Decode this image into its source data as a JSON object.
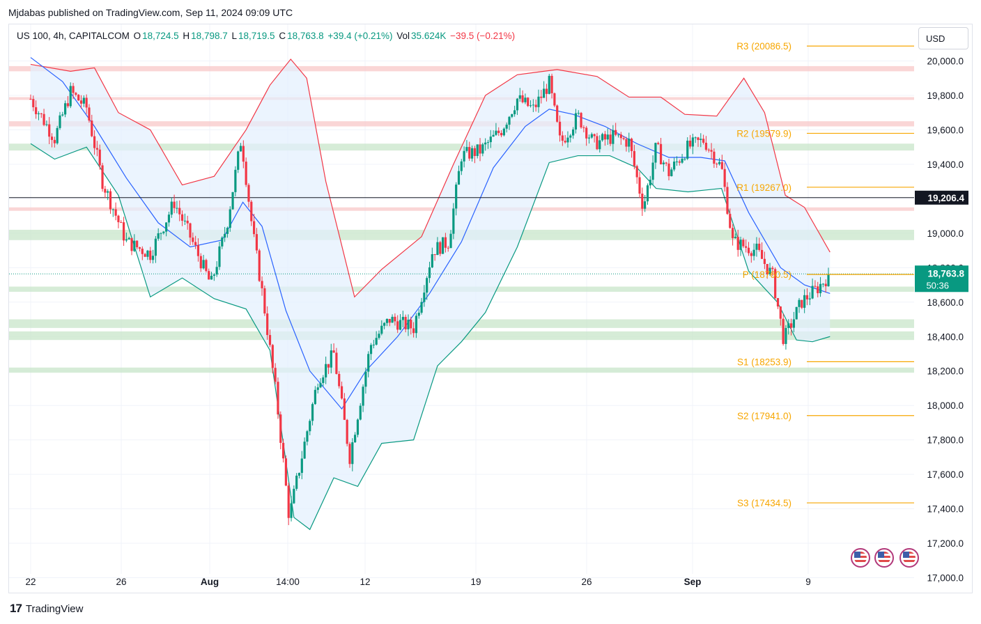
{
  "header": {
    "publisher": "Mjdabas published on TradingView.com, Sep 11, 2024 09:09 UTC"
  },
  "legend": {
    "symbol": "US 100, 4h, CAPITALCOM",
    "open_label": "O",
    "open": "18,724.5",
    "high_label": "H",
    "high": "18,798.7",
    "low_label": "L",
    "low": "18,719.5",
    "close_label": "C",
    "close": "18,763.8",
    "change": "+39.4 (+0.21%)",
    "vol_label": "Vol",
    "vol": "35.624K",
    "vol_change": "−39.5 (−0.21%)"
  },
  "currency_button": "USD",
  "footer": {
    "logo": "17",
    "brand": "TradingView"
  },
  "colors": {
    "up": "#089981",
    "down": "#f23645",
    "basis": "#2962ff",
    "upper_band": "#f23645",
    "lower_band": "#089981",
    "band_fill": "#e3effd",
    "pivot": "#f7a600",
    "support_zone": "#c8e6c9",
    "resistance_zone": "#f8c8c8"
  },
  "icons": [
    "us-flag-icon",
    "us-flag-icon",
    "us-flag-icon",
    "tradingview-logo-icon"
  ],
  "chart_data": {
    "type": "candlestick",
    "symbol": "US 100",
    "interval": "4h",
    "x_ticks": [
      "22",
      "26",
      "Aug",
      "14:00",
      "12",
      "19",
      "26",
      "Sep",
      "9"
    ],
    "y_ticks": [
      "20,000.0",
      "19,800.0",
      "19,600.0",
      "19,400.0",
      "19,200.0",
      "19,000.0",
      "18,800.0",
      "18,600.0",
      "18,400.0",
      "18,200.0",
      "18,000.0",
      "17,800.0",
      "17,600.0",
      "17,400.0",
      "17,200.0",
      "17,000.0"
    ],
    "ylim": [
      16990,
      20180
    ],
    "horizontal_line": {
      "value": 19206.4,
      "label": "19,206.4"
    },
    "last_price": {
      "value": 18763.8,
      "label": "18,763.8",
      "countdown": "50:36"
    },
    "pivot_levels": [
      {
        "name": "R3",
        "value": 20086.5,
        "label": "R3 (20086.5)"
      },
      {
        "name": "R2",
        "value": 19579.9,
        "label": "R2 (19579.9)"
      },
      {
        "name": "R1",
        "value": 19267.0,
        "label": "R1 (19267.0)"
      },
      {
        "name": "P",
        "value": 18760.5,
        "label": "P (18760.5)"
      },
      {
        "name": "S1",
        "value": 18253.9,
        "label": "S1 (18253.9)"
      },
      {
        "name": "S2",
        "value": 17941.0,
        "label": "S2 (17941.0)"
      },
      {
        "name": "S3",
        "value": 17434.5,
        "label": "S3 (17434.5)"
      }
    ],
    "zones": [
      {
        "type": "resistance",
        "from": 19940,
        "to": 19970
      },
      {
        "type": "resistance",
        "from": 19780,
        "to": 19790
      },
      {
        "type": "resistance",
        "from": 19620,
        "to": 19650
      },
      {
        "type": "support",
        "from": 19480,
        "to": 19520
      },
      {
        "type": "resistance",
        "from": 19130,
        "to": 19150
      },
      {
        "type": "support",
        "from": 18960,
        "to": 19020
      },
      {
        "type": "support",
        "from": 18660,
        "to": 18690
      },
      {
        "type": "support",
        "from": 18450,
        "to": 18500
      },
      {
        "type": "support",
        "from": 18380,
        "to": 18430
      },
      {
        "type": "support",
        "from": 18190,
        "to": 18220
      }
    ],
    "price_path": [
      {
        "day": 0,
        "price": 19780
      },
      {
        "day": 1.5,
        "price": 19550
      },
      {
        "day": 2.5,
        "price": 19820
      },
      {
        "day": 3.5,
        "price": 19730
      },
      {
        "day": 4.5,
        "price": 19300
      },
      {
        "day": 6,
        "price": 18950
      },
      {
        "day": 7.5,
        "price": 18880
      },
      {
        "day": 9,
        "price": 19180
      },
      {
        "day": 10,
        "price": 18980
      },
      {
        "day": 11.3,
        "price": 18700
      },
      {
        "day": 12.3,
        "price": 19050
      },
      {
        "day": 13.2,
        "price": 19550
      },
      {
        "day": 13.9,
        "price": 19020
      },
      {
        "day": 14.6,
        "price": 18600
      },
      {
        "day": 15.4,
        "price": 18050
      },
      {
        "day": 16.2,
        "price": 17350
      },
      {
        "day": 17.1,
        "price": 17750
      },
      {
        "day": 18,
        "price": 18150
      },
      {
        "day": 19,
        "price": 18300
      },
      {
        "day": 20,
        "price": 17700
      },
      {
        "day": 21.3,
        "price": 18350
      },
      {
        "day": 22.5,
        "price": 18500
      },
      {
        "day": 24,
        "price": 18450
      },
      {
        "day": 25.2,
        "price": 18900
      },
      {
        "day": 26.2,
        "price": 18950
      },
      {
        "day": 27,
        "price": 19450
      },
      {
        "day": 28.2,
        "price": 19480
      },
      {
        "day": 29.5,
        "price": 19600
      },
      {
        "day": 30.5,
        "price": 19780
      },
      {
        "day": 31.5,
        "price": 19720
      },
      {
        "day": 32.5,
        "price": 19870
      },
      {
        "day": 33.2,
        "price": 19520
      },
      {
        "day": 34.3,
        "price": 19680
      },
      {
        "day": 35.3,
        "price": 19520
      },
      {
        "day": 36.5,
        "price": 19560
      },
      {
        "day": 37.5,
        "price": 19530
      },
      {
        "day": 38.4,
        "price": 19150
      },
      {
        "day": 39.2,
        "price": 19500
      },
      {
        "day": 40,
        "price": 19350
      },
      {
        "day": 41.2,
        "price": 19500
      },
      {
        "day": 42.2,
        "price": 19540
      },
      {
        "day": 43.3,
        "price": 19380
      },
      {
        "day": 44,
        "price": 18950
      },
      {
        "day": 45.5,
        "price": 18900
      },
      {
        "day": 46.5,
        "price": 18750
      },
      {
        "day": 47.2,
        "price": 18380
      },
      {
        "day": 48.3,
        "price": 18600
      },
      {
        "day": 49.3,
        "price": 18680
      },
      {
        "day": 50.1,
        "price": 18764
      }
    ],
    "bollinger": {
      "basis": [
        {
          "day": 0,
          "price": 20020
        },
        {
          "day": 2,
          "price": 19880
        },
        {
          "day": 4,
          "price": 19620
        },
        {
          "day": 6,
          "price": 19320
        },
        {
          "day": 8,
          "price": 19060
        },
        {
          "day": 10,
          "price": 18920
        },
        {
          "day": 12,
          "price": 18960
        },
        {
          "day": 13.3,
          "price": 19180
        },
        {
          "day": 14.5,
          "price": 19040
        },
        {
          "day": 16,
          "price": 18550
        },
        {
          "day": 17.5,
          "price": 18200
        },
        {
          "day": 19.5,
          "price": 17980
        },
        {
          "day": 21,
          "price": 18200
        },
        {
          "day": 23,
          "price": 18400
        },
        {
          "day": 25,
          "price": 18650
        },
        {
          "day": 27,
          "price": 18950
        },
        {
          "day": 29,
          "price": 19380
        },
        {
          "day": 31,
          "price": 19620
        },
        {
          "day": 32.5,
          "price": 19720
        },
        {
          "day": 34,
          "price": 19690
        },
        {
          "day": 36,
          "price": 19620
        },
        {
          "day": 38,
          "price": 19520
        },
        {
          "day": 40,
          "price": 19440
        },
        {
          "day": 42,
          "price": 19440
        },
        {
          "day": 43.5,
          "price": 19420
        },
        {
          "day": 45,
          "price": 19120
        },
        {
          "day": 47,
          "price": 18800
        },
        {
          "day": 48.5,
          "price": 18700
        },
        {
          "day": 50.1,
          "price": 18650
        }
      ],
      "upper": [
        {
          "day": 0,
          "price": 19980
        },
        {
          "day": 2.5,
          "price": 19940
        },
        {
          "day": 4,
          "price": 19960
        },
        {
          "day": 5.5,
          "price": 19700
        },
        {
          "day": 7.5,
          "price": 19600
        },
        {
          "day": 9.5,
          "price": 19280
        },
        {
          "day": 11.5,
          "price": 19330
        },
        {
          "day": 13.5,
          "price": 19600
        },
        {
          "day": 15,
          "price": 19860
        },
        {
          "day": 16.3,
          "price": 20010
        },
        {
          "day": 17.3,
          "price": 19900
        },
        {
          "day": 18.5,
          "price": 19300
        },
        {
          "day": 20.3,
          "price": 18630
        },
        {
          "day": 22,
          "price": 18790
        },
        {
          "day": 24.5,
          "price": 18980
        },
        {
          "day": 26.5,
          "price": 19400
        },
        {
          "day": 28.5,
          "price": 19800
        },
        {
          "day": 30.5,
          "price": 19920
        },
        {
          "day": 33,
          "price": 19950
        },
        {
          "day": 35.5,
          "price": 19910
        },
        {
          "day": 37.5,
          "price": 19790
        },
        {
          "day": 39.5,
          "price": 19790
        },
        {
          "day": 41,
          "price": 19690
        },
        {
          "day": 43,
          "price": 19680
        },
        {
          "day": 44.7,
          "price": 19900
        },
        {
          "day": 46,
          "price": 19700
        },
        {
          "day": 47.3,
          "price": 19220
        },
        {
          "day": 48.5,
          "price": 19150
        },
        {
          "day": 50.1,
          "price": 18890
        }
      ],
      "lower": [
        {
          "day": 0,
          "price": 19520
        },
        {
          "day": 1.5,
          "price": 19430
        },
        {
          "day": 3.5,
          "price": 19500
        },
        {
          "day": 5.5,
          "price": 19220
        },
        {
          "day": 7.5,
          "price": 18630
        },
        {
          "day": 9.5,
          "price": 18740
        },
        {
          "day": 11.5,
          "price": 18620
        },
        {
          "day": 13.5,
          "price": 18560
        },
        {
          "day": 15,
          "price": 18320
        },
        {
          "day": 16.5,
          "price": 17350
        },
        {
          "day": 17.5,
          "price": 17280
        },
        {
          "day": 19,
          "price": 17580
        },
        {
          "day": 20.5,
          "price": 17530
        },
        {
          "day": 22,
          "price": 17780
        },
        {
          "day": 24,
          "price": 17800
        },
        {
          "day": 25.5,
          "price": 18230
        },
        {
          "day": 27,
          "price": 18370
        },
        {
          "day": 28.5,
          "price": 18540
        },
        {
          "day": 30.5,
          "price": 18920
        },
        {
          "day": 32.5,
          "price": 19410
        },
        {
          "day": 34.3,
          "price": 19450
        },
        {
          "day": 36.3,
          "price": 19450
        },
        {
          "day": 38,
          "price": 19380
        },
        {
          "day": 39.2,
          "price": 19260
        },
        {
          "day": 41.2,
          "price": 19240
        },
        {
          "day": 43.3,
          "price": 19260
        },
        {
          "day": 45,
          "price": 18780
        },
        {
          "day": 46.8,
          "price": 18600
        },
        {
          "day": 48,
          "price": 18380
        },
        {
          "day": 49,
          "price": 18370
        },
        {
          "day": 50.1,
          "price": 18400
        }
      ]
    }
  }
}
